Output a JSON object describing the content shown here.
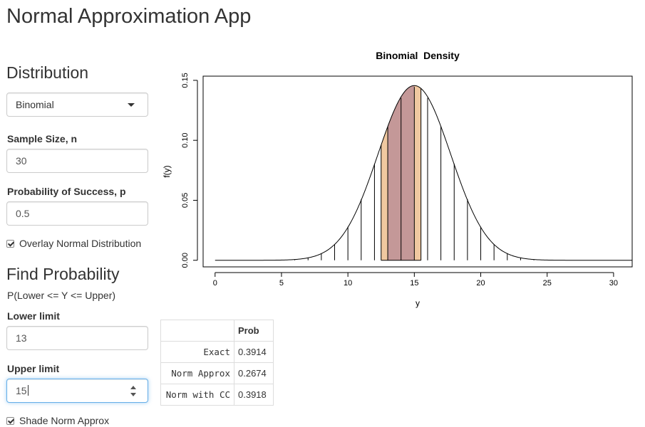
{
  "app": {
    "title": "Normal Approximation App"
  },
  "sidebar": {
    "distribution_heading": "Distribution",
    "distribution_select": "Binomial",
    "sample_size_label": "Sample Size, n",
    "sample_size_value": "30",
    "prob_success_label": "Probability of Success, p",
    "prob_success_value": "0.5",
    "overlay_label": "Overlay Normal Distribution",
    "overlay_checked": true,
    "find_heading": "Find Probability",
    "find_subtitle": "P(Lower <= Y <= Upper)",
    "lower_label": "Lower limit",
    "lower_value": "13",
    "upper_label": "Upper limit",
    "upper_value": "15",
    "shade_label": "Shade Norm Approx",
    "shade_checked": true
  },
  "chart_data": {
    "type": "bar",
    "title": "Binomial  Density",
    "xlabel": "y",
    "ylabel": "f(y)",
    "xlim": [
      0,
      31
    ],
    "ylim": [
      0,
      0.15
    ],
    "xticks": [
      "0",
      "5",
      "10",
      "15",
      "20",
      "25",
      "30"
    ],
    "yticks": [
      "0.00",
      "0.05",
      "0.10",
      "0.15"
    ],
    "n": 30,
    "p": 0.5,
    "x": [
      0,
      1,
      2,
      3,
      4,
      5,
      6,
      7,
      8,
      9,
      10,
      11,
      12,
      13,
      14,
      15,
      16,
      17,
      18,
      19,
      20,
      21,
      22,
      23,
      24,
      25,
      26,
      27,
      28,
      29,
      30
    ],
    "values": [
      0.0,
      0.0,
      0.0,
      0.0,
      0.0,
      0.0001,
      0.0006,
      0.0019,
      0.0055,
      0.0133,
      0.028,
      0.0509,
      0.0806,
      0.1115,
      0.1354,
      0.1445,
      0.1354,
      0.1115,
      0.0806,
      0.0509,
      0.028,
      0.0133,
      0.0055,
      0.0019,
      0.0006,
      0.0001,
      0.0,
      0.0,
      0.0,
      0.0,
      0.0
    ],
    "normal_overlay": {
      "mean": 15,
      "sd": 2.7386
    },
    "shade_cc": {
      "from": 12.5,
      "to": 15.5,
      "color": "#f0c8a0"
    },
    "shade_norm": {
      "from": 13,
      "to": 15,
      "color": "#c49898"
    }
  },
  "prob_table": {
    "header": "Prob",
    "rows": [
      {
        "label": "Exact",
        "value": "0.3914"
      },
      {
        "label": "Norm Approx",
        "value": "0.2674"
      },
      {
        "label": "Norm with CC",
        "value": "0.3918"
      }
    ]
  }
}
